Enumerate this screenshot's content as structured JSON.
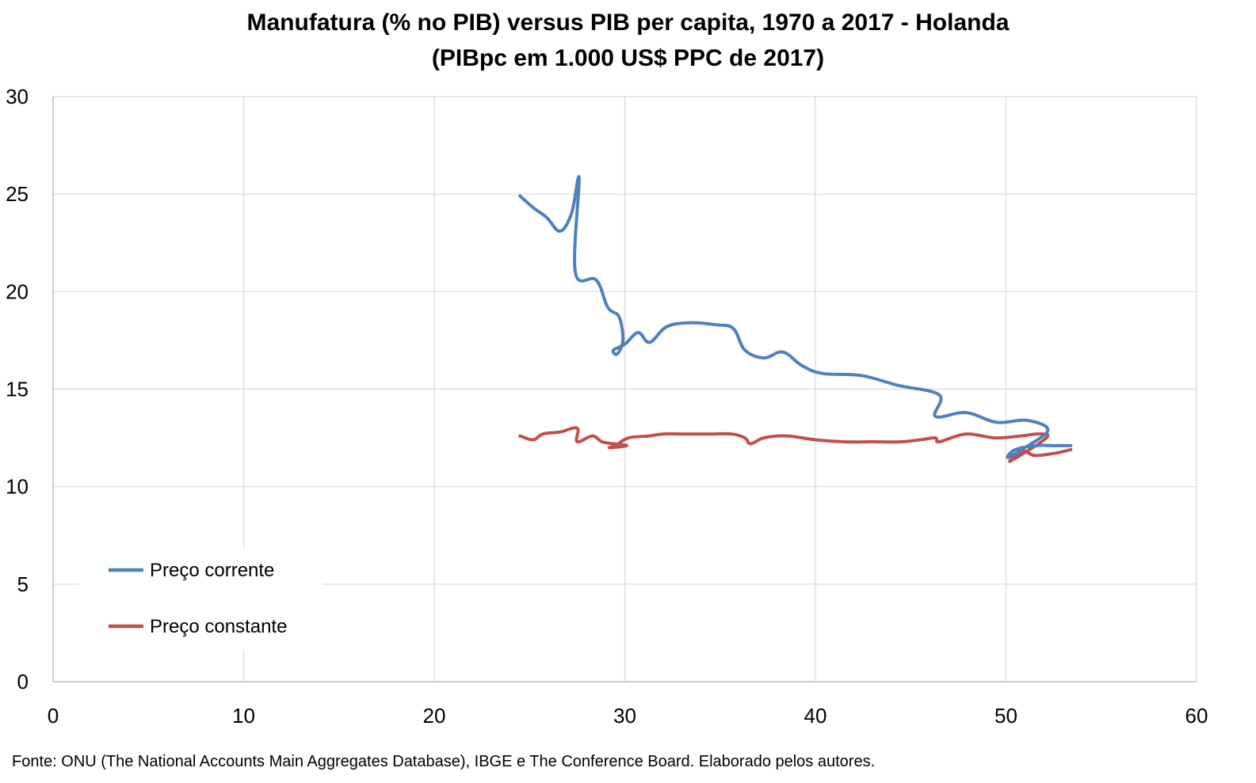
{
  "chart_data": {
    "type": "line",
    "title": "Manufatura (% no PIB) versus PIB per capita, 1970 a 2017 - Holanda",
    "subtitle": "(PIBpc em 1.000 US$ PPC de 2017)",
    "xlabel": "",
    "ylabel": "",
    "xlim": [
      0,
      60
    ],
    "ylim": [
      0,
      30
    ],
    "xticks": [
      "0",
      "10",
      "20",
      "30",
      "40",
      "50",
      "60"
    ],
    "yticks": [
      "0",
      "5",
      "10",
      "15",
      "20",
      "25",
      "30"
    ],
    "grid": true,
    "legend_position": "bottom-left",
    "series": [
      {
        "name": "Preço corrente",
        "color": "#4F81BD",
        "points": [
          [
            24.5,
            24.9
          ],
          [
            25.2,
            24.3
          ],
          [
            25.9,
            23.8
          ],
          [
            26.6,
            23.1
          ],
          [
            27.2,
            24.0
          ],
          [
            27.6,
            25.8
          ],
          [
            27.4,
            21.0
          ],
          [
            28.5,
            20.6
          ],
          [
            29.1,
            19.2
          ],
          [
            29.7,
            18.7
          ],
          [
            29.9,
            17.5
          ],
          [
            29.6,
            16.8
          ],
          [
            29.4,
            17.0
          ],
          [
            30.0,
            17.3
          ],
          [
            30.7,
            17.9
          ],
          [
            31.3,
            17.4
          ],
          [
            32.2,
            18.2
          ],
          [
            33.4,
            18.4
          ],
          [
            34.8,
            18.3
          ],
          [
            35.7,
            18.1
          ],
          [
            36.3,
            17.0
          ],
          [
            37.3,
            16.6
          ],
          [
            38.3,
            16.9
          ],
          [
            39.3,
            16.2
          ],
          [
            40.4,
            15.8
          ],
          [
            42.4,
            15.7
          ],
          [
            44.3,
            15.2
          ],
          [
            46.5,
            14.7
          ],
          [
            46.3,
            13.6
          ],
          [
            47.9,
            13.8
          ],
          [
            49.5,
            13.3
          ],
          [
            51.1,
            13.4
          ],
          [
            52.2,
            12.9
          ],
          [
            51.0,
            12.0
          ],
          [
            50.1,
            11.5
          ],
          [
            50.5,
            11.9
          ],
          [
            51.6,
            12.1
          ],
          [
            52.6,
            12.1
          ],
          [
            53.4,
            12.1
          ]
        ]
      },
      {
        "name": "Preço constante",
        "color": "#C0504D",
        "points": [
          [
            24.5,
            12.6
          ],
          [
            25.2,
            12.4
          ],
          [
            25.7,
            12.7
          ],
          [
            26.6,
            12.8
          ],
          [
            27.5,
            13.0
          ],
          [
            27.5,
            12.3
          ],
          [
            28.3,
            12.6
          ],
          [
            28.8,
            12.3
          ],
          [
            29.4,
            12.2
          ],
          [
            30.1,
            12.1
          ],
          [
            29.2,
            12.0
          ],
          [
            29.5,
            12.1
          ],
          [
            30.2,
            12.5
          ],
          [
            31.3,
            12.6
          ],
          [
            32.0,
            12.7
          ],
          [
            33.3,
            12.7
          ],
          [
            34.5,
            12.7
          ],
          [
            35.6,
            12.7
          ],
          [
            36.3,
            12.5
          ],
          [
            36.6,
            12.2
          ],
          [
            37.3,
            12.5
          ],
          [
            38.5,
            12.6
          ],
          [
            40.0,
            12.4
          ],
          [
            41.5,
            12.3
          ],
          [
            43.0,
            12.3
          ],
          [
            44.5,
            12.3
          ],
          [
            45.5,
            12.4
          ],
          [
            46.3,
            12.5
          ],
          [
            46.5,
            12.3
          ],
          [
            47.9,
            12.7
          ],
          [
            49.4,
            12.5
          ],
          [
            50.8,
            12.6
          ],
          [
            51.6,
            12.7
          ],
          [
            52.2,
            12.6
          ],
          [
            51.4,
            12.0
          ],
          [
            50.2,
            11.3
          ],
          [
            50.9,
            11.8
          ],
          [
            51.5,
            11.6
          ],
          [
            52.5,
            11.7
          ],
          [
            53.4,
            11.9
          ]
        ]
      }
    ]
  },
  "footer": "Fonte: ONU (The National Accounts Main Aggregates Database), IBGE e The Conference Board. Elaborado pelos autores."
}
